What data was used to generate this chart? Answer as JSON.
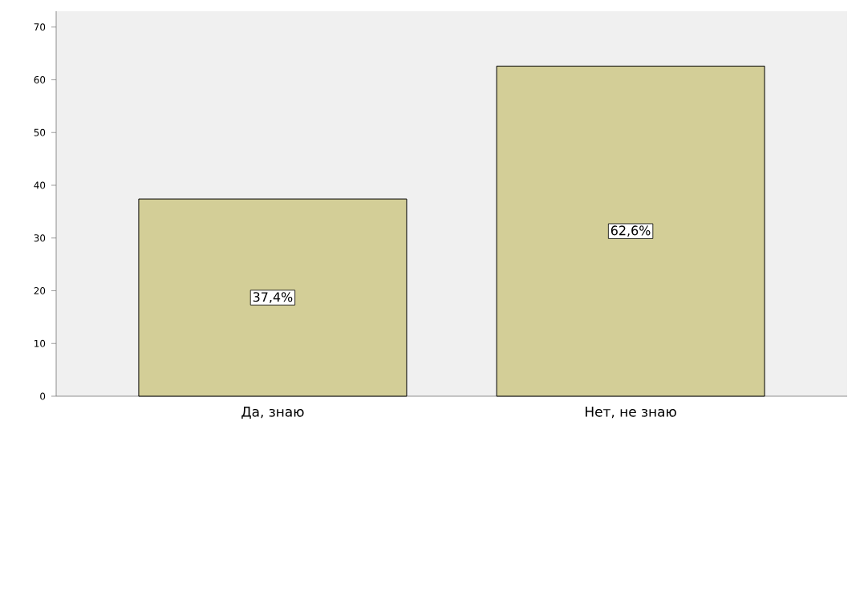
{
  "chart_data": {
    "type": "bar",
    "categories": [
      "Да, знаю",
      "Нет, не знаю"
    ],
    "values": [
      37.4,
      62.6
    ],
    "value_labels": [
      "37,4%",
      "62,6%"
    ],
    "color": "#d3ce97",
    "ylim": [
      0,
      73
    ],
    "yticks": [
      0,
      10,
      20,
      30,
      40,
      50,
      60,
      70
    ]
  }
}
